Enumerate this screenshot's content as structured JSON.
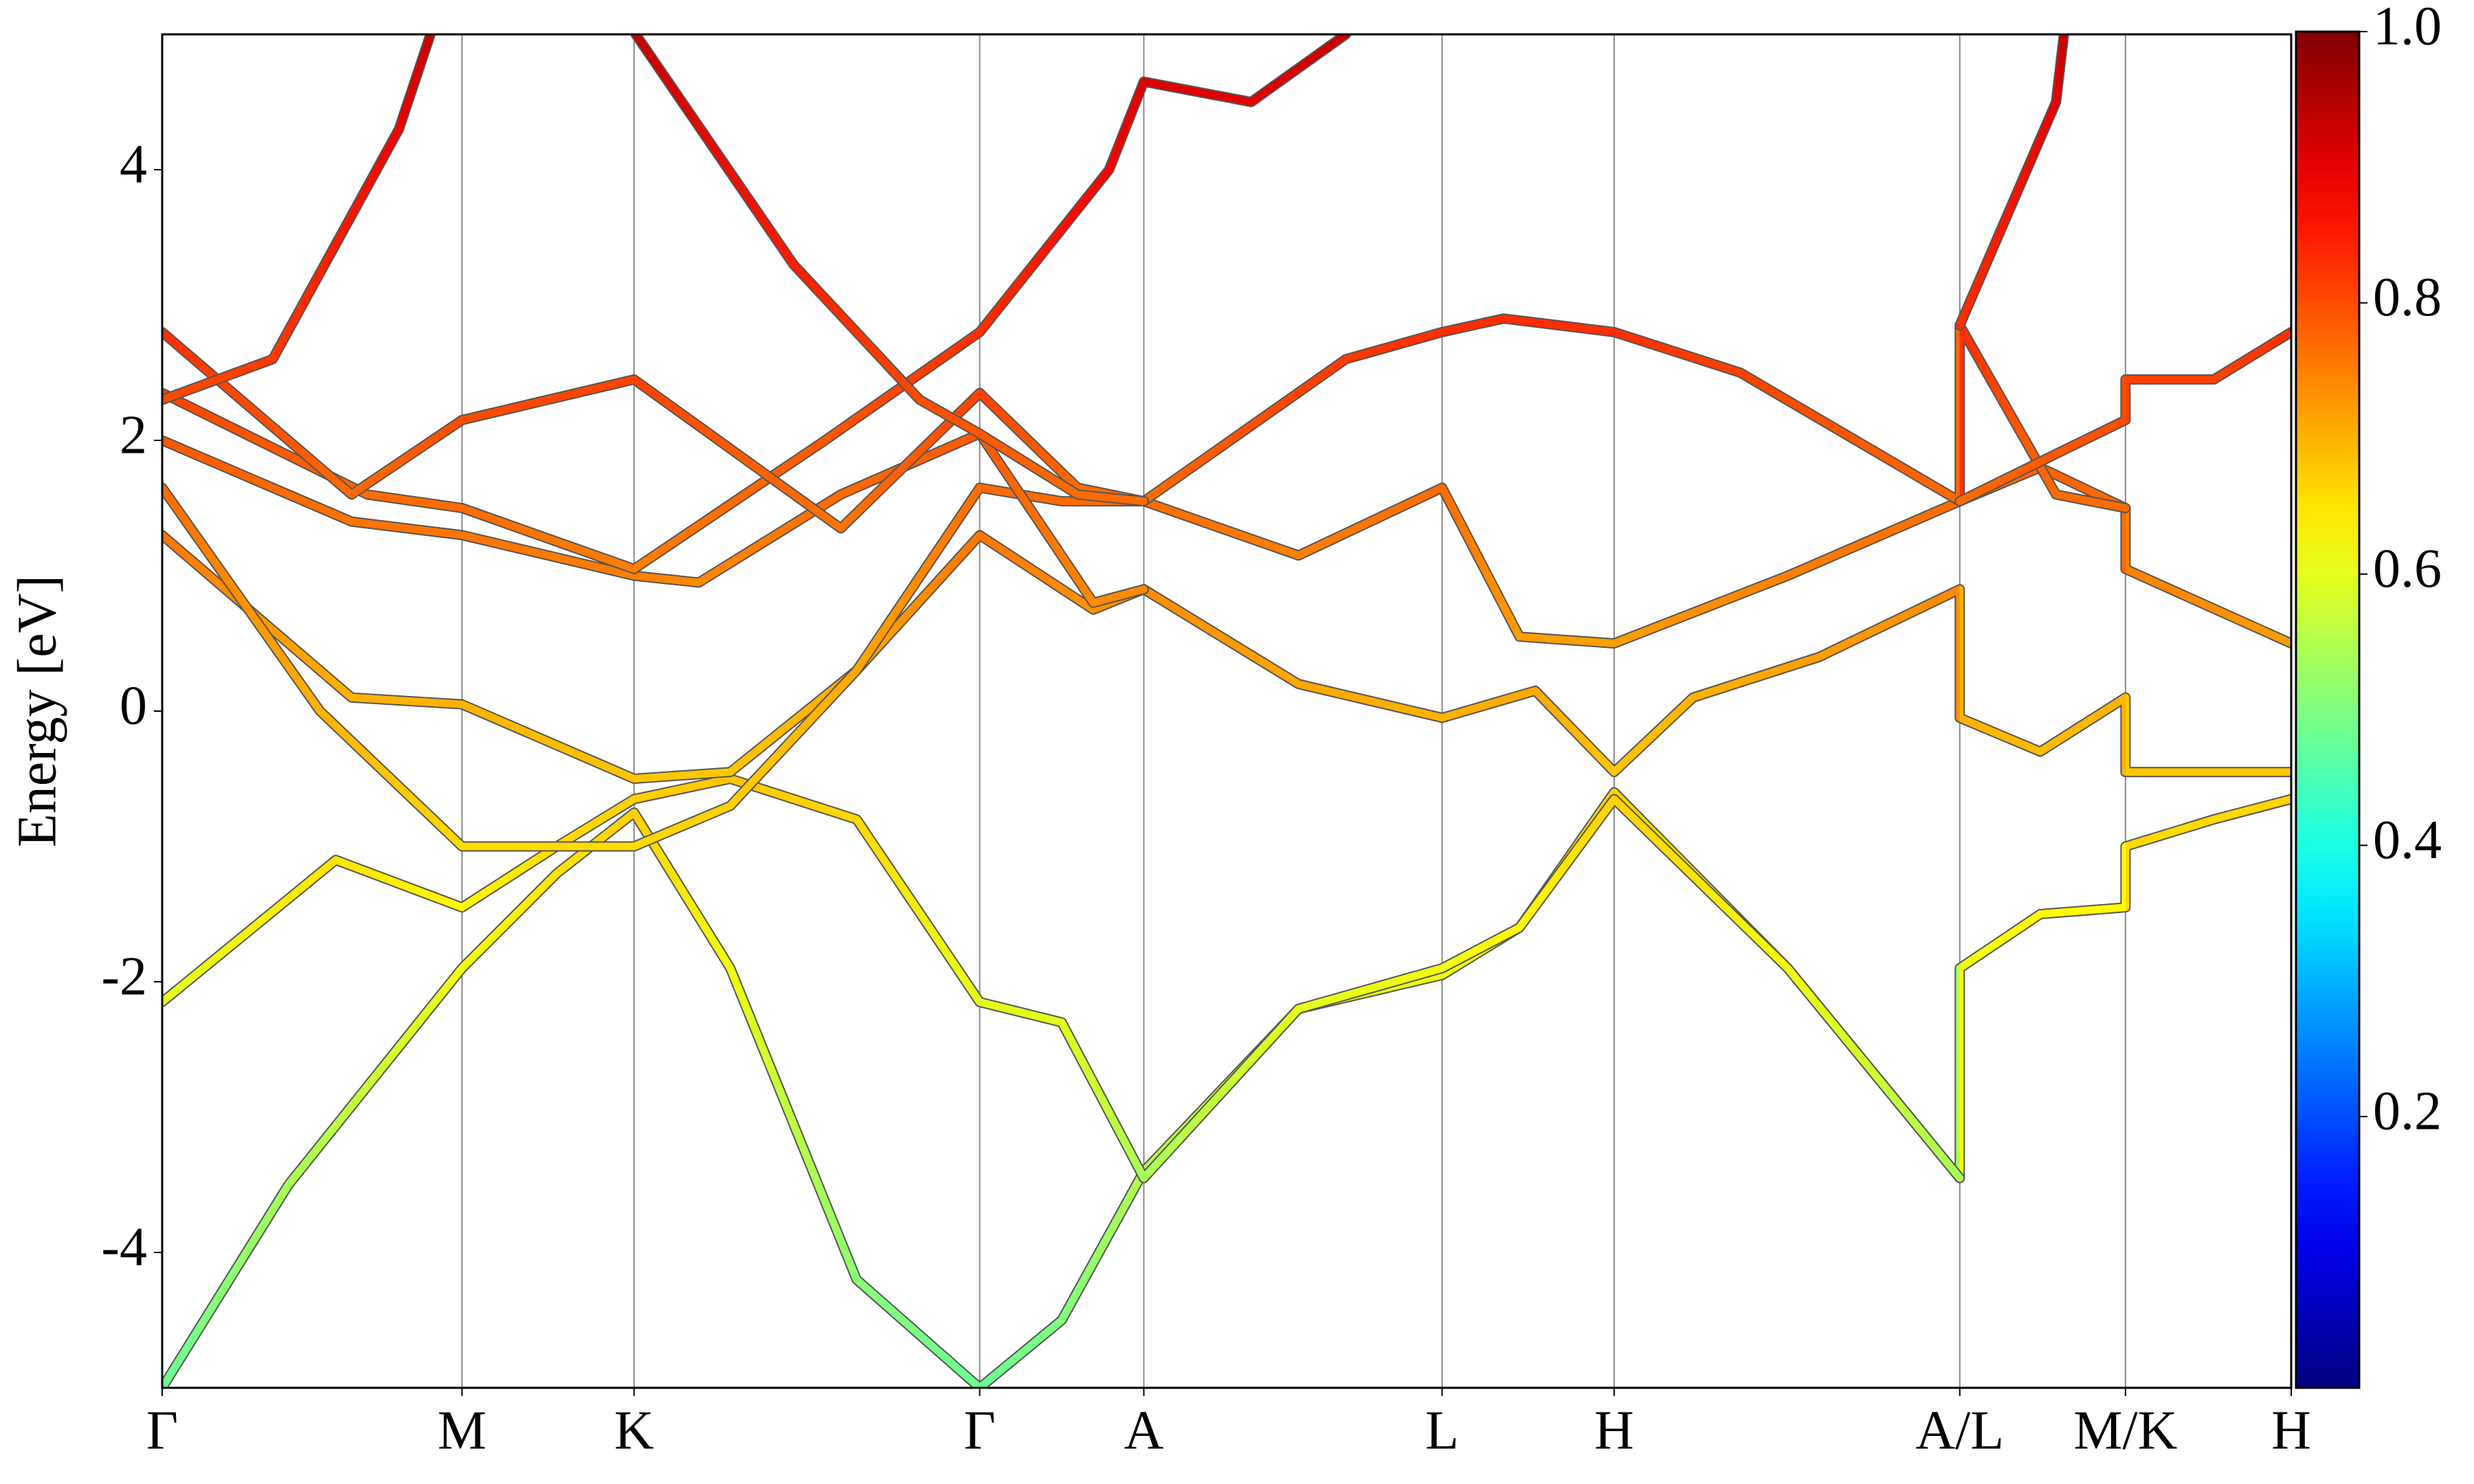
{
  "chart_data": {
    "type": "line",
    "ylabel": "Energy [eV]",
    "xlim": [
      0,
      13.49
    ],
    "ylim": [
      -5,
      5
    ],
    "xticks": [
      {
        "value": 0,
        "label": "Γ"
      },
      {
        "value": 1.9,
        "label": "M"
      },
      {
        "value": 2.99,
        "label": "K"
      },
      {
        "value": 5.18,
        "label": "Γ"
      },
      {
        "value": 6.22,
        "label": "A"
      },
      {
        "value": 8.11,
        "label": "L"
      },
      {
        "value": 9.2,
        "label": "H"
      },
      {
        "value": 11.39,
        "label": "A/L"
      },
      {
        "value": 12.44,
        "label": "M/K"
      },
      {
        "value": 13.49,
        "label": "H"
      }
    ],
    "yticks": [
      -4,
      -2,
      0,
      2,
      4
    ],
    "xgrid": true,
    "colormap": "jet",
    "clim": [
      0,
      1
    ],
    "cticks": [
      0.2,
      0.4,
      0.6,
      0.8,
      {
        "value": 1,
        "label": "1.0"
      }
    ],
    "series": [
      {
        "x": [
          0,
          0.8,
          1.9,
          2.5,
          2.99,
          3.6,
          4.4,
          5.18,
          5.7,
          6.22,
          7.2,
          8.11,
          8.6,
          9.2,
          10.3,
          11.39,
          11.39,
          11.9,
          12.44,
          12.44,
          13.0,
          13.49
        ],
        "values": [
          -5,
          -3.5,
          -1.9,
          -1.2,
          -0.75,
          -1.9,
          -4.2,
          -5,
          -4.5,
          -3.4,
          -2.2,
          -1.95,
          -1.6,
          -0.6,
          -1.9,
          -3.45,
          -1.9,
          -1.5,
          -1.45,
          -1.0,
          -0.8,
          -0.65
        ],
        "weights": [
          0.48,
          0.54,
          0.61,
          0.65,
          0.67,
          0.61,
          0.51,
          0.48,
          0.5,
          0.55,
          0.6,
          0.61,
          0.63,
          0.67,
          0.61,
          0.54,
          0.61,
          0.63,
          0.63,
          0.66,
          0.66,
          0.67
        ]
      },
      {
        "x": [
          0,
          1.1,
          1.9,
          2.5,
          2.99,
          3.6,
          4.4,
          5.18,
          5.7,
          6.22,
          7.2,
          8.11,
          8.6,
          9.2,
          10.3,
          11.39
        ],
        "values": [
          -2.15,
          -1.1,
          -1.45,
          -1.0,
          -0.65,
          -0.5,
          -0.8,
          -2.15,
          -2.3,
          -3.45,
          -2.2,
          -1.9,
          -1.6,
          -0.65,
          -1.9,
          -3.45
        ],
        "weights": [
          0.6,
          0.65,
          0.63,
          0.66,
          0.67,
          0.68,
          0.66,
          0.6,
          0.6,
          0.54,
          0.6,
          0.61,
          0.63,
          0.67,
          0.61,
          0.54
        ]
      },
      {
        "x": [
          0,
          1.2,
          1.9,
          2.99,
          3.6,
          4.4,
          5.18,
          5.9,
          6.22,
          7.2,
          8.11,
          8.7,
          9.2,
          9.7,
          10.5,
          11.39,
          11.39,
          11.9,
          12.44,
          12.44,
          13.49
        ],
        "values": [
          1.3,
          0.1,
          0.05,
          -0.5,
          -0.45,
          0.3,
          1.3,
          0.75,
          0.9,
          0.2,
          -0.05,
          0.15,
          -0.45,
          0.1,
          0.4,
          0.9,
          -0.05,
          -0.3,
          0.1,
          -0.45,
          -0.45
        ],
        "weights": [
          0.76,
          0.7,
          0.7,
          0.68,
          0.68,
          0.71,
          0.76,
          0.73,
          0.74,
          0.71,
          0.7,
          0.71,
          0.68,
          0.7,
          0.72,
          0.74,
          0.7,
          0.69,
          0.7,
          0.68,
          0.68
        ]
      },
      {
        "x": [
          0,
          1.0,
          1.9,
          2.99,
          3.6,
          4.4,
          5.18,
          5.7,
          6.22,
          7.2,
          8.11,
          8.6,
          9.2,
          10.3,
          11.39,
          11.9,
          12.44,
          12.44,
          13.49
        ],
        "values": [
          1.65,
          0.0,
          -1.0,
          -1.0,
          -0.7,
          0.3,
          1.65,
          1.55,
          1.55,
          1.15,
          1.65,
          0.55,
          0.5,
          1.0,
          1.55,
          1.8,
          1.5,
          1.05,
          0.5
        ],
        "weights": [
          0.77,
          0.7,
          0.66,
          0.66,
          0.67,
          0.71,
          0.77,
          0.77,
          0.77,
          0.75,
          0.77,
          0.72,
          0.72,
          0.75,
          0.77,
          0.78,
          0.77,
          0.75,
          0.72
        ]
      },
      {
        "x": [
          0,
          1.2,
          1.9,
          2.99,
          3.4,
          4.3,
          5.18,
          5.9,
          6.22
        ],
        "values": [
          2.0,
          1.4,
          1.3,
          1.0,
          0.95,
          1.6,
          2.05,
          0.8,
          0.9
        ],
        "weights": [
          0.79,
          0.76,
          0.76,
          0.75,
          0.74,
          0.77,
          0.79,
          0.74,
          0.74
        ]
      },
      {
        "x": [
          0,
          1.3,
          1.9,
          2.99,
          4.2,
          5.18,
          6.0,
          6.22,
          6.9,
          7.5
        ],
        "values": [
          2.35,
          1.6,
          1.5,
          1.05,
          2.0,
          2.8,
          4.0,
          4.65,
          4.5,
          5.0
        ],
        "weights": [
          0.81,
          0.77,
          0.77,
          0.75,
          0.79,
          0.83,
          0.88,
          0.91,
          0.9,
          0.93
        ]
      },
      {
        "x": [
          0,
          1.2,
          1.9,
          2.99,
          4.3,
          5.18,
          5.8,
          6.22,
          7.5,
          8.11,
          8.5,
          9.2,
          10.0,
          11.39,
          11.39,
          12.0,
          12.44
        ],
        "values": [
          2.8,
          1.6,
          2.15,
          2.45,
          1.35,
          2.35,
          1.65,
          1.55,
          2.6,
          2.8,
          2.9,
          2.8,
          2.5,
          1.55,
          2.85,
          1.6,
          1.5
        ],
        "weights": [
          0.83,
          0.77,
          0.8,
          0.81,
          0.76,
          0.81,
          0.77,
          0.77,
          0.82,
          0.83,
          0.83,
          0.83,
          0.81,
          0.77,
          0.83,
          0.77,
          0.77
        ]
      },
      {
        "x": [
          0,
          0.7,
          1.5,
          1.7
        ],
        "values": [
          2.3,
          2.6,
          4.3,
          5.0
        ],
        "weights": [
          0.8,
          0.82,
          0.89,
          0.93
        ]
      },
      {
        "x": [
          3.0,
          4.0,
          4.8,
          5.18,
          5.8,
          6.22
        ],
        "values": [
          5.0,
          3.3,
          2.3,
          2.05,
          1.6,
          1.55
        ],
        "weights": [
          0.93,
          0.85,
          0.8,
          0.79,
          0.77,
          0.77
        ]
      },
      {
        "x": [
          11.39,
          12.0,
          12.44,
          12.44,
          13.0,
          13.49
        ],
        "values": [
          1.55,
          1.9,
          2.15,
          2.45,
          2.45,
          2.8
        ],
        "weights": [
          0.77,
          0.79,
          0.8,
          0.81,
          0.81,
          0.83
        ]
      },
      {
        "x": [
          11.39,
          12.0,
          12.05
        ],
        "values": [
          2.85,
          4.5,
          5.0
        ],
        "weights": [
          0.83,
          0.9,
          0.93
        ]
      }
    ]
  }
}
